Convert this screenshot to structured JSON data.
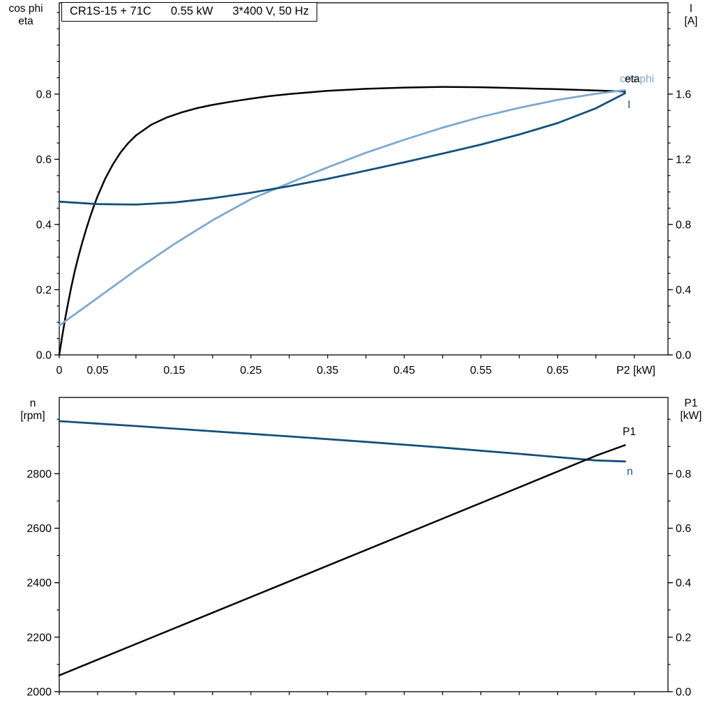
{
  "header": {
    "title_model": "CR1S-15 + 71C",
    "title_power": "0.55 kW",
    "title_supply": "3*400 V, 50 Hz"
  },
  "colors": {
    "curve_black": "#000000",
    "curve_dark_blue": "#164f7d",
    "curve_light_blue": "#7fa8cd",
    "axis": "#000000",
    "background": "#ffffff"
  },
  "curve_labels": {
    "eta": "eta",
    "cos_phi": "cos phi",
    "current": "I",
    "p1": "P1",
    "n": "n"
  },
  "chart_data": [
    {
      "id": "motor-curves-top",
      "type": "line",
      "title": "CR1S-15 + 71C  0.55 kW  3*400 V, 50 Hz",
      "grid": false,
      "x_axis": {
        "label": "P2 [kW]",
        "min": 0,
        "max": 0.794,
        "minor_step": 0.05,
        "ticks": [
          0,
          0.05,
          0.15,
          0.25,
          0.35,
          0.45,
          0.55,
          0.65
        ],
        "tick_labels": [
          "0",
          "0.05",
          "0.15",
          "0.25",
          "0.35",
          "0.45",
          "0.55",
          "0.65"
        ]
      },
      "y_left": {
        "label_line1": "cos phi",
        "label_line2": "eta",
        "min": 0,
        "max": 1.08,
        "minor_step": 0.05,
        "ticks": [
          0,
          0.2,
          0.4,
          0.6,
          0.8
        ],
        "tick_labels": [
          "0.0",
          "0.2",
          "0.4",
          "0.6",
          "0.8"
        ]
      },
      "y_right": {
        "label_line1": "I",
        "label_line2": "[A]",
        "min": 0,
        "max": 2.16,
        "minor_step": 0.1,
        "ticks": [
          0,
          0.4,
          0.8,
          1.2,
          1.6
        ],
        "tick_labels": [
          "0.0",
          "0.4",
          "0.8",
          "1.2",
          "1.6"
        ]
      },
      "series": [
        {
          "name": "eta",
          "axis": "left",
          "color_key": "curve_black",
          "stroke_width": 2.5,
          "x": [
            0,
            0.004,
            0.008,
            0.012,
            0.016,
            0.02,
            0.025,
            0.03,
            0.035,
            0.04,
            0.045,
            0.05,
            0.06,
            0.07,
            0.08,
            0.09,
            0.1,
            0.12,
            0.14,
            0.16,
            0.18,
            0.2,
            0.225,
            0.25,
            0.275,
            0.3,
            0.35,
            0.4,
            0.45,
            0.5,
            0.55,
            0.6,
            0.65,
            0.7,
            0.738
          ],
          "y": [
            0,
            0.06,
            0.115,
            0.165,
            0.212,
            0.255,
            0.302,
            0.345,
            0.385,
            0.422,
            0.456,
            0.487,
            0.541,
            0.585,
            0.621,
            0.65,
            0.673,
            0.706,
            0.728,
            0.744,
            0.757,
            0.767,
            0.777,
            0.786,
            0.794,
            0.8,
            0.81,
            0.816,
            0.82,
            0.822,
            0.821,
            0.818,
            0.815,
            0.811,
            0.808
          ]
        },
        {
          "name": "cos phi",
          "axis": "left",
          "color_key": "curve_light_blue",
          "stroke_width": 2.8,
          "x": [
            0,
            0.05,
            0.1,
            0.15,
            0.2,
            0.25,
            0.3,
            0.35,
            0.4,
            0.45,
            0.5,
            0.55,
            0.6,
            0.65,
            0.7,
            0.738
          ],
          "y": [
            0.09,
            0.175,
            0.26,
            0.34,
            0.413,
            0.478,
            0.527,
            0.575,
            0.62,
            0.66,
            0.697,
            0.73,
            0.758,
            0.782,
            0.801,
            0.812
          ]
        },
        {
          "name": "I",
          "axis": "right",
          "color_key": "curve_dark_blue",
          "stroke_width": 2.8,
          "x": [
            0,
            0.05,
            0.1,
            0.15,
            0.2,
            0.25,
            0.3,
            0.35,
            0.4,
            0.45,
            0.5,
            0.55,
            0.6,
            0.65,
            0.7,
            0.738
          ],
          "y": [
            0.94,
            0.925,
            0.922,
            0.935,
            0.961,
            0.995,
            1.035,
            1.08,
            1.13,
            1.182,
            1.235,
            1.29,
            1.352,
            1.422,
            1.513,
            1.605
          ]
        }
      ]
    },
    {
      "id": "motor-curves-bottom",
      "type": "line",
      "title": "",
      "grid": false,
      "x_axis": {
        "label": "",
        "min": 0,
        "max": 0.794,
        "minor_step": 0.05,
        "ticks": [],
        "tick_labels": []
      },
      "y_left": {
        "label_line1": "n",
        "label_line2": "[rpm]",
        "min": 2000,
        "max": 3080,
        "minor_step": 100,
        "ticks": [
          2000,
          2200,
          2400,
          2600,
          2800
        ],
        "tick_labels": [
          "2000",
          "2200",
          "2400",
          "2600",
          "2800"
        ]
      },
      "y_right": {
        "label_line1": "P1",
        "label_line2": "[kW]",
        "min": 0,
        "max": 1.08,
        "minor_step": 0.1,
        "ticks": [
          0,
          0.2,
          0.4,
          0.6,
          0.8
        ],
        "tick_labels": [
          "0.0",
          "0.2",
          "0.4",
          "0.6",
          "0.8"
        ]
      },
      "series": [
        {
          "name": "n",
          "axis": "left",
          "color_key": "curve_dark_blue",
          "stroke_width": 2.8,
          "x": [
            0,
            0.1,
            0.2,
            0.3,
            0.4,
            0.5,
            0.6,
            0.7,
            0.738
          ],
          "y": [
            2993,
            2975,
            2956,
            2937,
            2917,
            2896,
            2873,
            2849,
            2845
          ]
        },
        {
          "name": "P1",
          "axis": "right",
          "color_key": "curve_black",
          "stroke_width": 2.5,
          "x": [
            0,
            0.1,
            0.2,
            0.3,
            0.4,
            0.5,
            0.6,
            0.7,
            0.738
          ],
          "y": [
            0.06,
            0.175,
            0.29,
            0.405,
            0.52,
            0.635,
            0.75,
            0.866,
            0.905
          ]
        }
      ]
    }
  ]
}
